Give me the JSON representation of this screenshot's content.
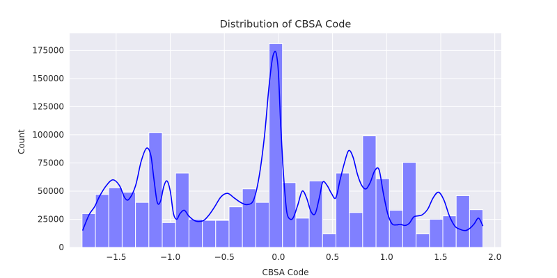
{
  "chart_data": {
    "type": "bar",
    "title": "Distribution of CBSA Code",
    "xlabel": "CBSA Code",
    "ylabel": "Count",
    "xlim": [
      -1.93,
      2.06
    ],
    "ylim": [
      0,
      190000
    ],
    "x_ticks": [
      -1.5,
      -1.0,
      -0.5,
      0.0,
      0.5,
      1.0,
      1.5,
      2.0
    ],
    "x_tick_labels": [
      "−1.5",
      "−1.0",
      "−0.5",
      "0.0",
      "0.5",
      "1.0",
      "1.5",
      "2.0"
    ],
    "y_ticks": [
      0,
      25000,
      50000,
      75000,
      100000,
      125000,
      150000,
      175000
    ],
    "y_tick_labels": [
      "0",
      "25000",
      "50000",
      "75000",
      "100000",
      "125000",
      "150000",
      "175000"
    ],
    "grid": true,
    "background": "#eaeaf2",
    "bar_color": "#8080ff",
    "bar_edge_color": "#ffffff",
    "kde_color": "#0000ff",
    "histogram": {
      "bin_start": -1.815,
      "bin_width": 0.1235,
      "counts": [
        30000,
        47000,
        53000,
        49000,
        40000,
        102000,
        22000,
        66000,
        25000,
        24000,
        24000,
        36000,
        52000,
        40000,
        181000,
        57500,
        26000,
        59000,
        12000,
        66000,
        31000,
        99000,
        61000,
        33000,
        75500,
        12000,
        25000,
        28000,
        46000,
        33500
      ]
    },
    "kde": {
      "x": [
        -1.81,
        -1.75,
        -1.7,
        -1.65,
        -1.59,
        -1.53,
        -1.47,
        -1.42,
        -1.38,
        -1.32,
        -1.27,
        -1.22,
        -1.18,
        -1.15,
        -1.12,
        -1.09,
        -1.06,
        -1.03,
        -1.0,
        -0.97,
        -0.94,
        -0.91,
        -0.87,
        -0.83,
        -0.78,
        -0.74,
        -0.69,
        -0.64,
        -0.59,
        -0.53,
        -0.47,
        -0.41,
        -0.35,
        -0.29,
        -0.23,
        -0.18,
        -0.13,
        -0.09,
        -0.06,
        -0.04,
        -0.02,
        0.0,
        0.02,
        0.04,
        0.06,
        0.08,
        0.11,
        0.14,
        0.18,
        0.22,
        0.26,
        0.3,
        0.34,
        0.38,
        0.41,
        0.45,
        0.49,
        0.53,
        0.57,
        0.61,
        0.65,
        0.69,
        0.73,
        0.77,
        0.81,
        0.85,
        0.89,
        0.93,
        0.97,
        1.01,
        1.05,
        1.09,
        1.13,
        1.17,
        1.21,
        1.25,
        1.29,
        1.33,
        1.38,
        1.43,
        1.48,
        1.53,
        1.58,
        1.63,
        1.68,
        1.73,
        1.77,
        1.81,
        1.85,
        1.89
      ],
      "y": [
        15000,
        29000,
        36000,
        46000,
        55000,
        60000,
        55000,
        44000,
        43000,
        55000,
        76000,
        88000,
        82000,
        60000,
        40000,
        41000,
        54000,
        59000,
        50000,
        30000,
        25000,
        30000,
        33000,
        28000,
        24000,
        23000,
        24000,
        29000,
        36000,
        45000,
        48000,
        44000,
        40000,
        38000,
        42000,
        62000,
        98000,
        140000,
        165000,
        173000,
        172000,
        155000,
        110000,
        75000,
        48000,
        30000,
        25000,
        27000,
        38000,
        50000,
        44000,
        32000,
        30000,
        45000,
        58000,
        55000,
        48000,
        44000,
        60000,
        75000,
        86000,
        80000,
        65000,
        55000,
        52000,
        58000,
        68000,
        69000,
        48000,
        30000,
        21000,
        20000,
        20500,
        19500,
        21500,
        27000,
        28000,
        29000,
        34000,
        44000,
        49000,
        42000,
        28000,
        19000,
        16000,
        15000,
        17000,
        21000,
        26000,
        19000
      ]
    }
  }
}
